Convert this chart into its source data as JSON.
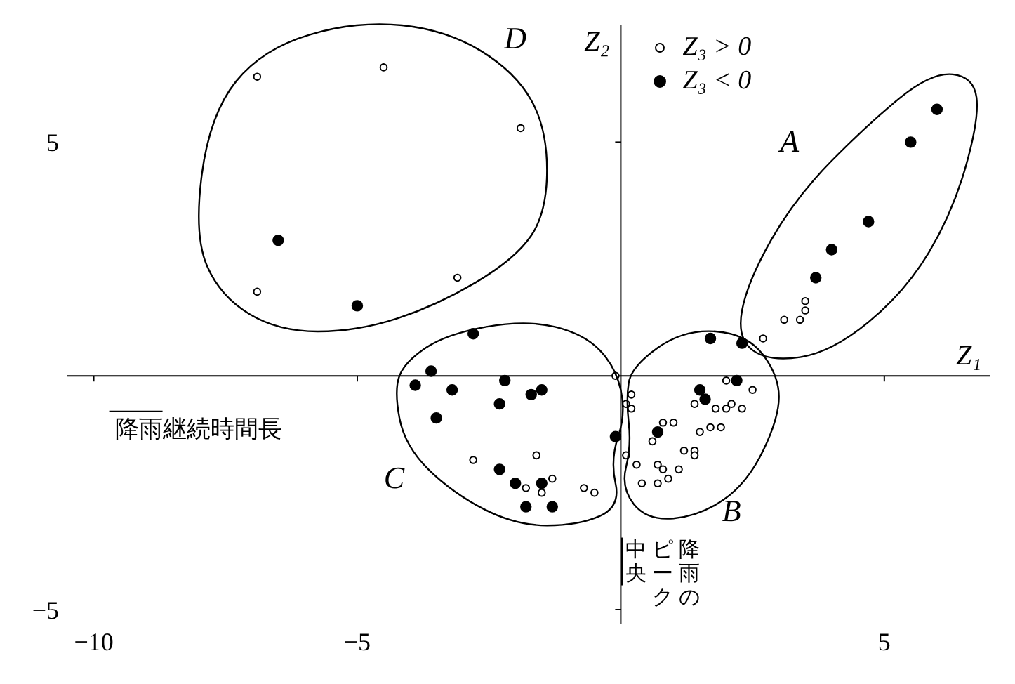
{
  "chart_data": {
    "type": "scatter",
    "xlabel": "Z₁",
    "ylabel": "Z₂",
    "xlim": [
      -10.5,
      7
    ],
    "ylim": [
      -5.3,
      7.5
    ],
    "xticks": [
      -10,
      -5,
      5
    ],
    "yticks": [
      -5,
      5
    ],
    "marker": "circle",
    "legend": "top",
    "series": [
      {
        "name": "Z₃ > 0",
        "color": "#ffffff",
        "x": [
          -6.9,
          -4.5,
          -1.9,
          -6.9,
          -3.1,
          3.5,
          3.5,
          3.4,
          3.1,
          2.7,
          -0.1,
          -2.8,
          -1.6,
          -1.8,
          -1.3,
          -1.5,
          -0.7,
          -0.5,
          2.0,
          2.5,
          1.4,
          1.8,
          2.0,
          2.1,
          2.3,
          0.2,
          0.1,
          0.2,
          0.8,
          1.0,
          0.6,
          1.7,
          1.5,
          1.9,
          0.1,
          1.2,
          1.4,
          1.4,
          0.3,
          0.7,
          0.8,
          1.1,
          0.4,
          0.7,
          0.9
        ],
        "values": [
          6.4,
          6.6,
          5.3,
          1.8,
          2.1,
          1.6,
          1.4,
          1.2,
          1.2,
          0.8,
          0.0,
          -1.8,
          -1.7,
          -2.4,
          -2.2,
          -2.5,
          -2.4,
          -2.5,
          -0.1,
          -0.3,
          -0.6,
          -0.7,
          -0.7,
          -0.6,
          -0.7,
          -0.4,
          -0.6,
          -0.7,
          -1.0,
          -1.0,
          -1.4,
          -1.1,
          -1.2,
          -1.1,
          -1.7,
          -1.6,
          -1.6,
          -1.7,
          -1.9,
          -1.9,
          -2.0,
          -2.0,
          -2.3,
          -2.3,
          -2.2
        ]
      },
      {
        "name": "Z₃ < 0",
        "color": "#000000",
        "x": [
          -6.5,
          -5.0,
          6.0,
          5.5,
          4.7,
          4.0,
          3.7,
          2.3,
          1.7,
          2.2,
          1.5,
          1.6,
          0.7,
          -2.8,
          -3.6,
          -2.2,
          -3.9,
          -3.2,
          -2.3,
          -1.7,
          -1.5,
          -3.5,
          -0.1,
          -2.3,
          -2.0,
          -1.5,
          -1.8,
          -1.3
        ],
        "values": [
          2.9,
          1.5,
          5.7,
          5.0,
          3.3,
          2.7,
          2.1,
          0.7,
          0.8,
          -0.1,
          -0.3,
          -0.5,
          -1.2,
          0.9,
          0.1,
          -0.1,
          -0.2,
          -0.3,
          -0.6,
          -0.4,
          -0.3,
          -0.9,
          -1.3,
          -2.0,
          -2.3,
          -2.3,
          -2.8,
          -2.8
        ]
      }
    ],
    "annotations": [
      "A",
      "B",
      "C",
      "D",
      "降雨継続時間長",
      "降雨のピーク中央"
    ]
  }
}
